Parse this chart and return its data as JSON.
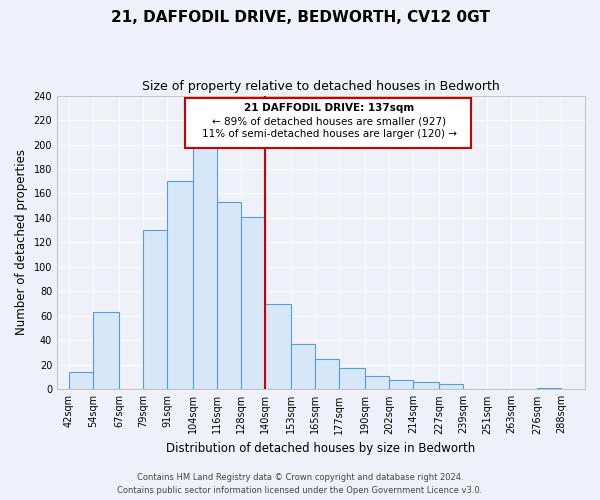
{
  "title": "21, DAFFODIL DRIVE, BEDWORTH, CV12 0GT",
  "subtitle": "Size of property relative to detached houses in Bedworth",
  "xlabel": "Distribution of detached houses by size in Bedworth",
  "ylabel": "Number of detached properties",
  "bar_left_edges": [
    42,
    54,
    67,
    79,
    91,
    104,
    116,
    128,
    140,
    153,
    165,
    177,
    190,
    202,
    214,
    227,
    239,
    251,
    263,
    276
  ],
  "bar_heights": [
    14,
    63,
    0,
    130,
    170,
    200,
    153,
    141,
    70,
    37,
    25,
    17,
    11,
    8,
    6,
    4,
    0,
    0,
    0,
    1
  ],
  "bar_widths": [
    12,
    13,
    12,
    12,
    13,
    12,
    12,
    12,
    13,
    12,
    12,
    13,
    12,
    12,
    13,
    12,
    12,
    12,
    13,
    12
  ],
  "x_tick_labels": [
    "42sqm",
    "54sqm",
    "67sqm",
    "79sqm",
    "91sqm",
    "104sqm",
    "116sqm",
    "128sqm",
    "140sqm",
    "153sqm",
    "165sqm",
    "177sqm",
    "190sqm",
    "202sqm",
    "214sqm",
    "227sqm",
    "239sqm",
    "251sqm",
    "263sqm",
    "276sqm",
    "288sqm"
  ],
  "x_tick_positions": [
    42,
    54,
    67,
    79,
    91,
    104,
    116,
    128,
    140,
    153,
    165,
    177,
    190,
    202,
    214,
    227,
    239,
    251,
    263,
    276,
    288
  ],
  "ylim": [
    0,
    240
  ],
  "yticks": [
    0,
    20,
    40,
    60,
    80,
    100,
    120,
    140,
    160,
    180,
    200,
    220,
    240
  ],
  "xlim": [
    36,
    300
  ],
  "bar_face_color": "#d6e8f7",
  "bar_edge_color": "#5b9bd5",
  "vline_x": 140,
  "vline_color": "#cc0000",
  "annotation_text_line1": "21 DAFFODIL DRIVE: 137sqm",
  "annotation_text_line2": "← 89% of detached houses are smaller (927)",
  "annotation_text_line3": "11% of semi-detached houses are larger (120) →",
  "annotation_box_color": "#cc0000",
  "footer_line1": "Contains HM Land Registry data © Crown copyright and database right 2024.",
  "footer_line2": "Contains public sector information licensed under the Open Government Licence v3.0.",
  "background_color": "#eef2f8",
  "plot_bg_color": "#eef2f8",
  "grid_color": "#ffffff",
  "title_fontsize": 11,
  "subtitle_fontsize": 9,
  "axis_label_fontsize": 8.5,
  "tick_fontsize": 7,
  "footer_fontsize": 6
}
